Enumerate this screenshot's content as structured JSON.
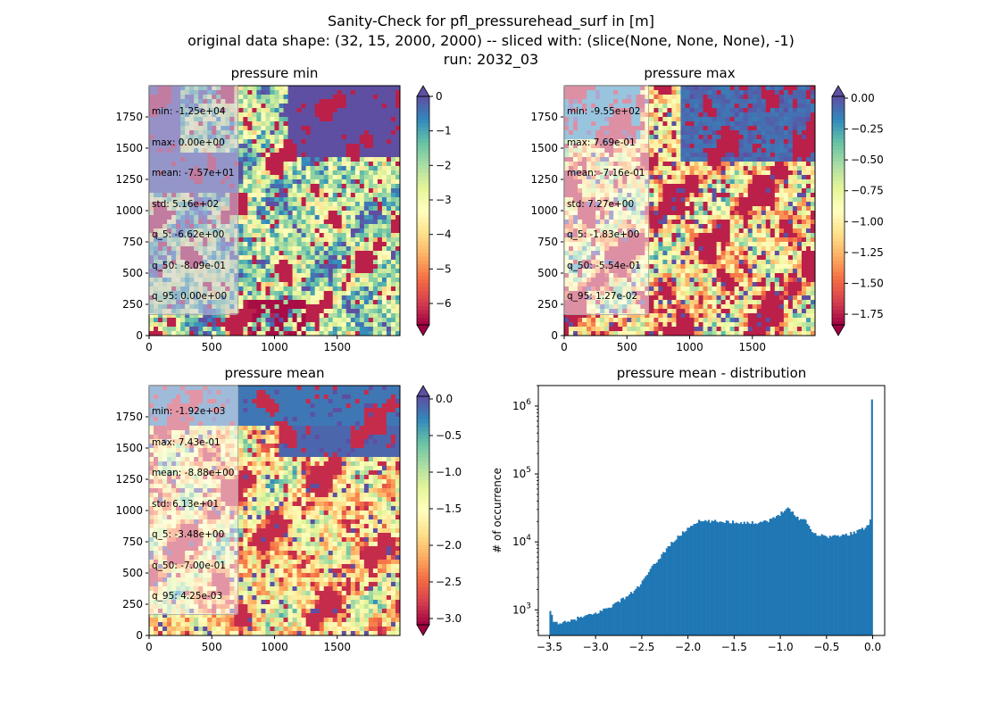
{
  "figure": {
    "title_lines": [
      "Sanity-Check for pfl_pressurehead_surf in [m]",
      "original data shape: (32, 15, 2000, 2000) -- sliced with: (slice(None, None, None), -1)",
      "run: 2032_03"
    ],
    "colors": {
      "spectral": [
        "#9e0142",
        "#d53e4f",
        "#f46d43",
        "#fdae61",
        "#fee08b",
        "#ffffbf",
        "#e6f598",
        "#abdda4",
        "#66c2a5",
        "#3288bd",
        "#5e4fa2"
      ],
      "hist": "#1f77b4"
    }
  },
  "chart_data": [
    {
      "type": "heatmap",
      "title": "pressure min",
      "xlim": [
        0,
        2000
      ],
      "ylim": [
        0,
        2000
      ],
      "xticks": [
        "0",
        "500",
        "1000",
        "1500"
      ],
      "yticks": [
        "0",
        "250",
        "500",
        "750",
        "1000",
        "1250",
        "1500",
        "1750"
      ],
      "colorbar": {
        "range": [
          -6.8,
          0
        ],
        "ticks": [
          "0",
          "−1",
          "−2",
          "−3",
          "−4",
          "−5",
          "−6"
        ],
        "extend": "both",
        "cmap": "Spectral"
      },
      "stats": [
        "min: -1.25e+04",
        "max: 0.00e+00",
        "mean: -7.57e+01",
        "std: 5.16e+02",
        "q_5: -6.62e+00",
        "q_50: -8.09e-01",
        "q_95: 0.00e+00"
      ]
    },
    {
      "type": "heatmap",
      "title": "pressure max",
      "xlim": [
        0,
        2000
      ],
      "ylim": [
        0,
        2000
      ],
      "xticks": [
        "0",
        "500",
        "1000",
        "1500"
      ],
      "yticks": [
        "0",
        "250",
        "500",
        "750",
        "1000",
        "1250",
        "1500",
        "1750"
      ],
      "colorbar": {
        "range": [
          -1.85,
          0.02
        ],
        "ticks": [
          "0.00",
          "−0.25",
          "−0.50",
          "−0.75",
          "−1.00",
          "−1.25",
          "−1.50",
          "−1.75"
        ],
        "extend": "both",
        "cmap": "Spectral"
      },
      "stats": [
        "min: -9.55e+02",
        "max: 7.69e-01",
        "mean: -7.16e-01",
        "std: 7.27e+00",
        "q_5: -1.83e+00",
        "q_50: -5.54e-01",
        "q_95: 1.27e-02"
      ]
    },
    {
      "type": "heatmap",
      "title": "pressure mean",
      "xlim": [
        0,
        2000
      ],
      "ylim": [
        0,
        2000
      ],
      "xticks": [
        "0",
        "500",
        "1000",
        "1500"
      ],
      "yticks": [
        "0",
        "250",
        "500",
        "750",
        "1000",
        "1250",
        "1500",
        "1750"
      ],
      "colorbar": {
        "range": [
          -3.5,
          0.005
        ],
        "ticks": [
          "0.0",
          "−0.5",
          "−1.0",
          "−1.5",
          "−2.0",
          "−2.5",
          "−3.0"
        ],
        "extend": "both",
        "cmap": "Spectral"
      },
      "stats": [
        "min: -1.92e+03",
        "max: 7.43e-01",
        "mean: -8.88e+00",
        "std: 6.13e+01",
        "q_5: -3.48e+00",
        "q_50: -7.00e-01",
        "q_95: 4.25e-03"
      ]
    },
    {
      "type": "bar",
      "subtype": "histogram",
      "title": "pressure mean - distribution",
      "ylabel": "# of occurrence",
      "xlim": [
        -3.62,
        0.13
      ],
      "ylim": [
        420,
        2000000
      ],
      "yscale": "log",
      "xticks": [
        "−3.5",
        "−3.0",
        "−2.5",
        "−2.0",
        "−1.5",
        "−1.0",
        "−0.5",
        "0.0"
      ],
      "yticks": [
        "10^3",
        "10^4",
        "10^5",
        "10^6"
      ],
      "bin_range": [
        -3.5,
        0.0
      ],
      "bins": 200,
      "profile": [
        [
          -3.5,
          1000
        ],
        [
          -3.45,
          650
        ],
        [
          -3.3,
          650
        ],
        [
          -3.2,
          750
        ],
        [
          -3.0,
          880
        ],
        [
          -2.8,
          1200
        ],
        [
          -2.6,
          1800
        ],
        [
          -2.5,
          2500
        ],
        [
          -2.4,
          4000
        ],
        [
          -2.2,
          9000
        ],
        [
          -2.0,
          16000
        ],
        [
          -1.9,
          20000
        ],
        [
          -1.6,
          20000
        ],
        [
          -1.3,
          19000
        ],
        [
          -1.1,
          21000
        ],
        [
          -1.0,
          26000
        ],
        [
          -0.93,
          33000
        ],
        [
          -0.88,
          28000
        ],
        [
          -0.8,
          22000
        ],
        [
          -0.72,
          21000
        ],
        [
          -0.65,
          13500
        ],
        [
          -0.5,
          12000
        ],
        [
          -0.3,
          12500
        ],
        [
          -0.1,
          15500
        ],
        [
          -0.04,
          19000
        ],
        [
          -0.015,
          26000
        ],
        [
          0.0,
          1250000
        ]
      ]
    }
  ]
}
